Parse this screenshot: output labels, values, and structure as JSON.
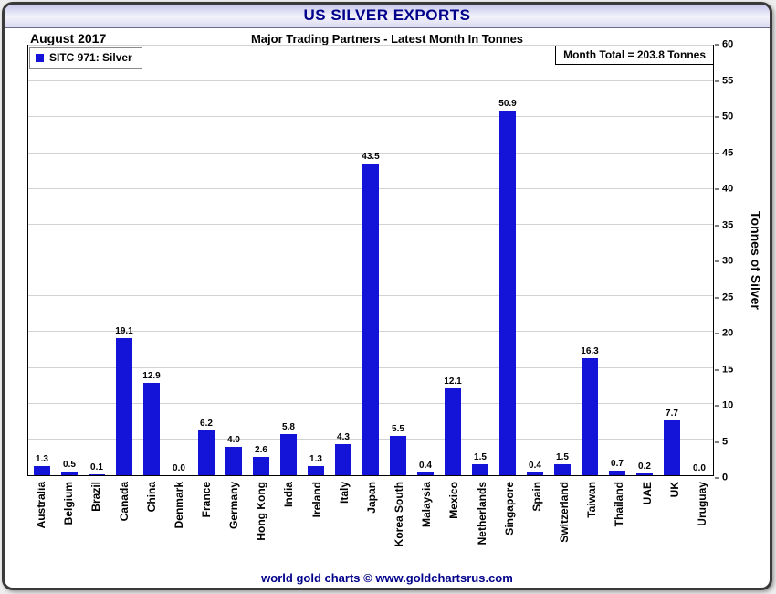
{
  "header": {
    "title": "US SILVER EXPORTS",
    "date": "August 2017",
    "subtitle": "Major Trading Partners - Latest Month In Tonnes"
  },
  "legend": {
    "label": "SITC 971: Silver"
  },
  "annotation": {
    "month_total": "Month Total = 203.8 Tonnes"
  },
  "footer": {
    "text": "world gold charts © www.goldchartsrus.com"
  },
  "colors": {
    "bar": "#1414d8",
    "title_text": "#00008b",
    "footer_text": "#00008b"
  },
  "chart_data": {
    "type": "bar",
    "title": "US SILVER EXPORTS",
    "subtitle": "Major Trading Partners - Latest Month In Tonnes",
    "xlabel": "",
    "ylabel": "Tonnes of Silver",
    "ylim": [
      0,
      60
    ],
    "ytick_step": 5,
    "grid": true,
    "legend_position": "top-left",
    "legend_entries": [
      "SITC 971: Silver"
    ],
    "categories": [
      "Australia",
      "Belgium",
      "Brazil",
      "Canada",
      "China",
      "Denmark",
      "France",
      "Germany",
      "Hong Kong",
      "India",
      "Ireland",
      "Italy",
      "Japan",
      "Korea South",
      "Malaysia",
      "Mexico",
      "Netherlands",
      "Singapore",
      "Spain",
      "Switzerland",
      "Taiwan",
      "Thailand",
      "UAE",
      "UK",
      "Uruguay"
    ],
    "values": [
      1.3,
      0.5,
      0.1,
      19.1,
      12.9,
      0.0,
      6.2,
      4.0,
      2.6,
      5.8,
      1.3,
      4.3,
      43.5,
      5.5,
      0.4,
      12.1,
      1.5,
      50.9,
      0.4,
      1.5,
      16.3,
      0.7,
      0.2,
      7.7,
      0.0
    ]
  }
}
